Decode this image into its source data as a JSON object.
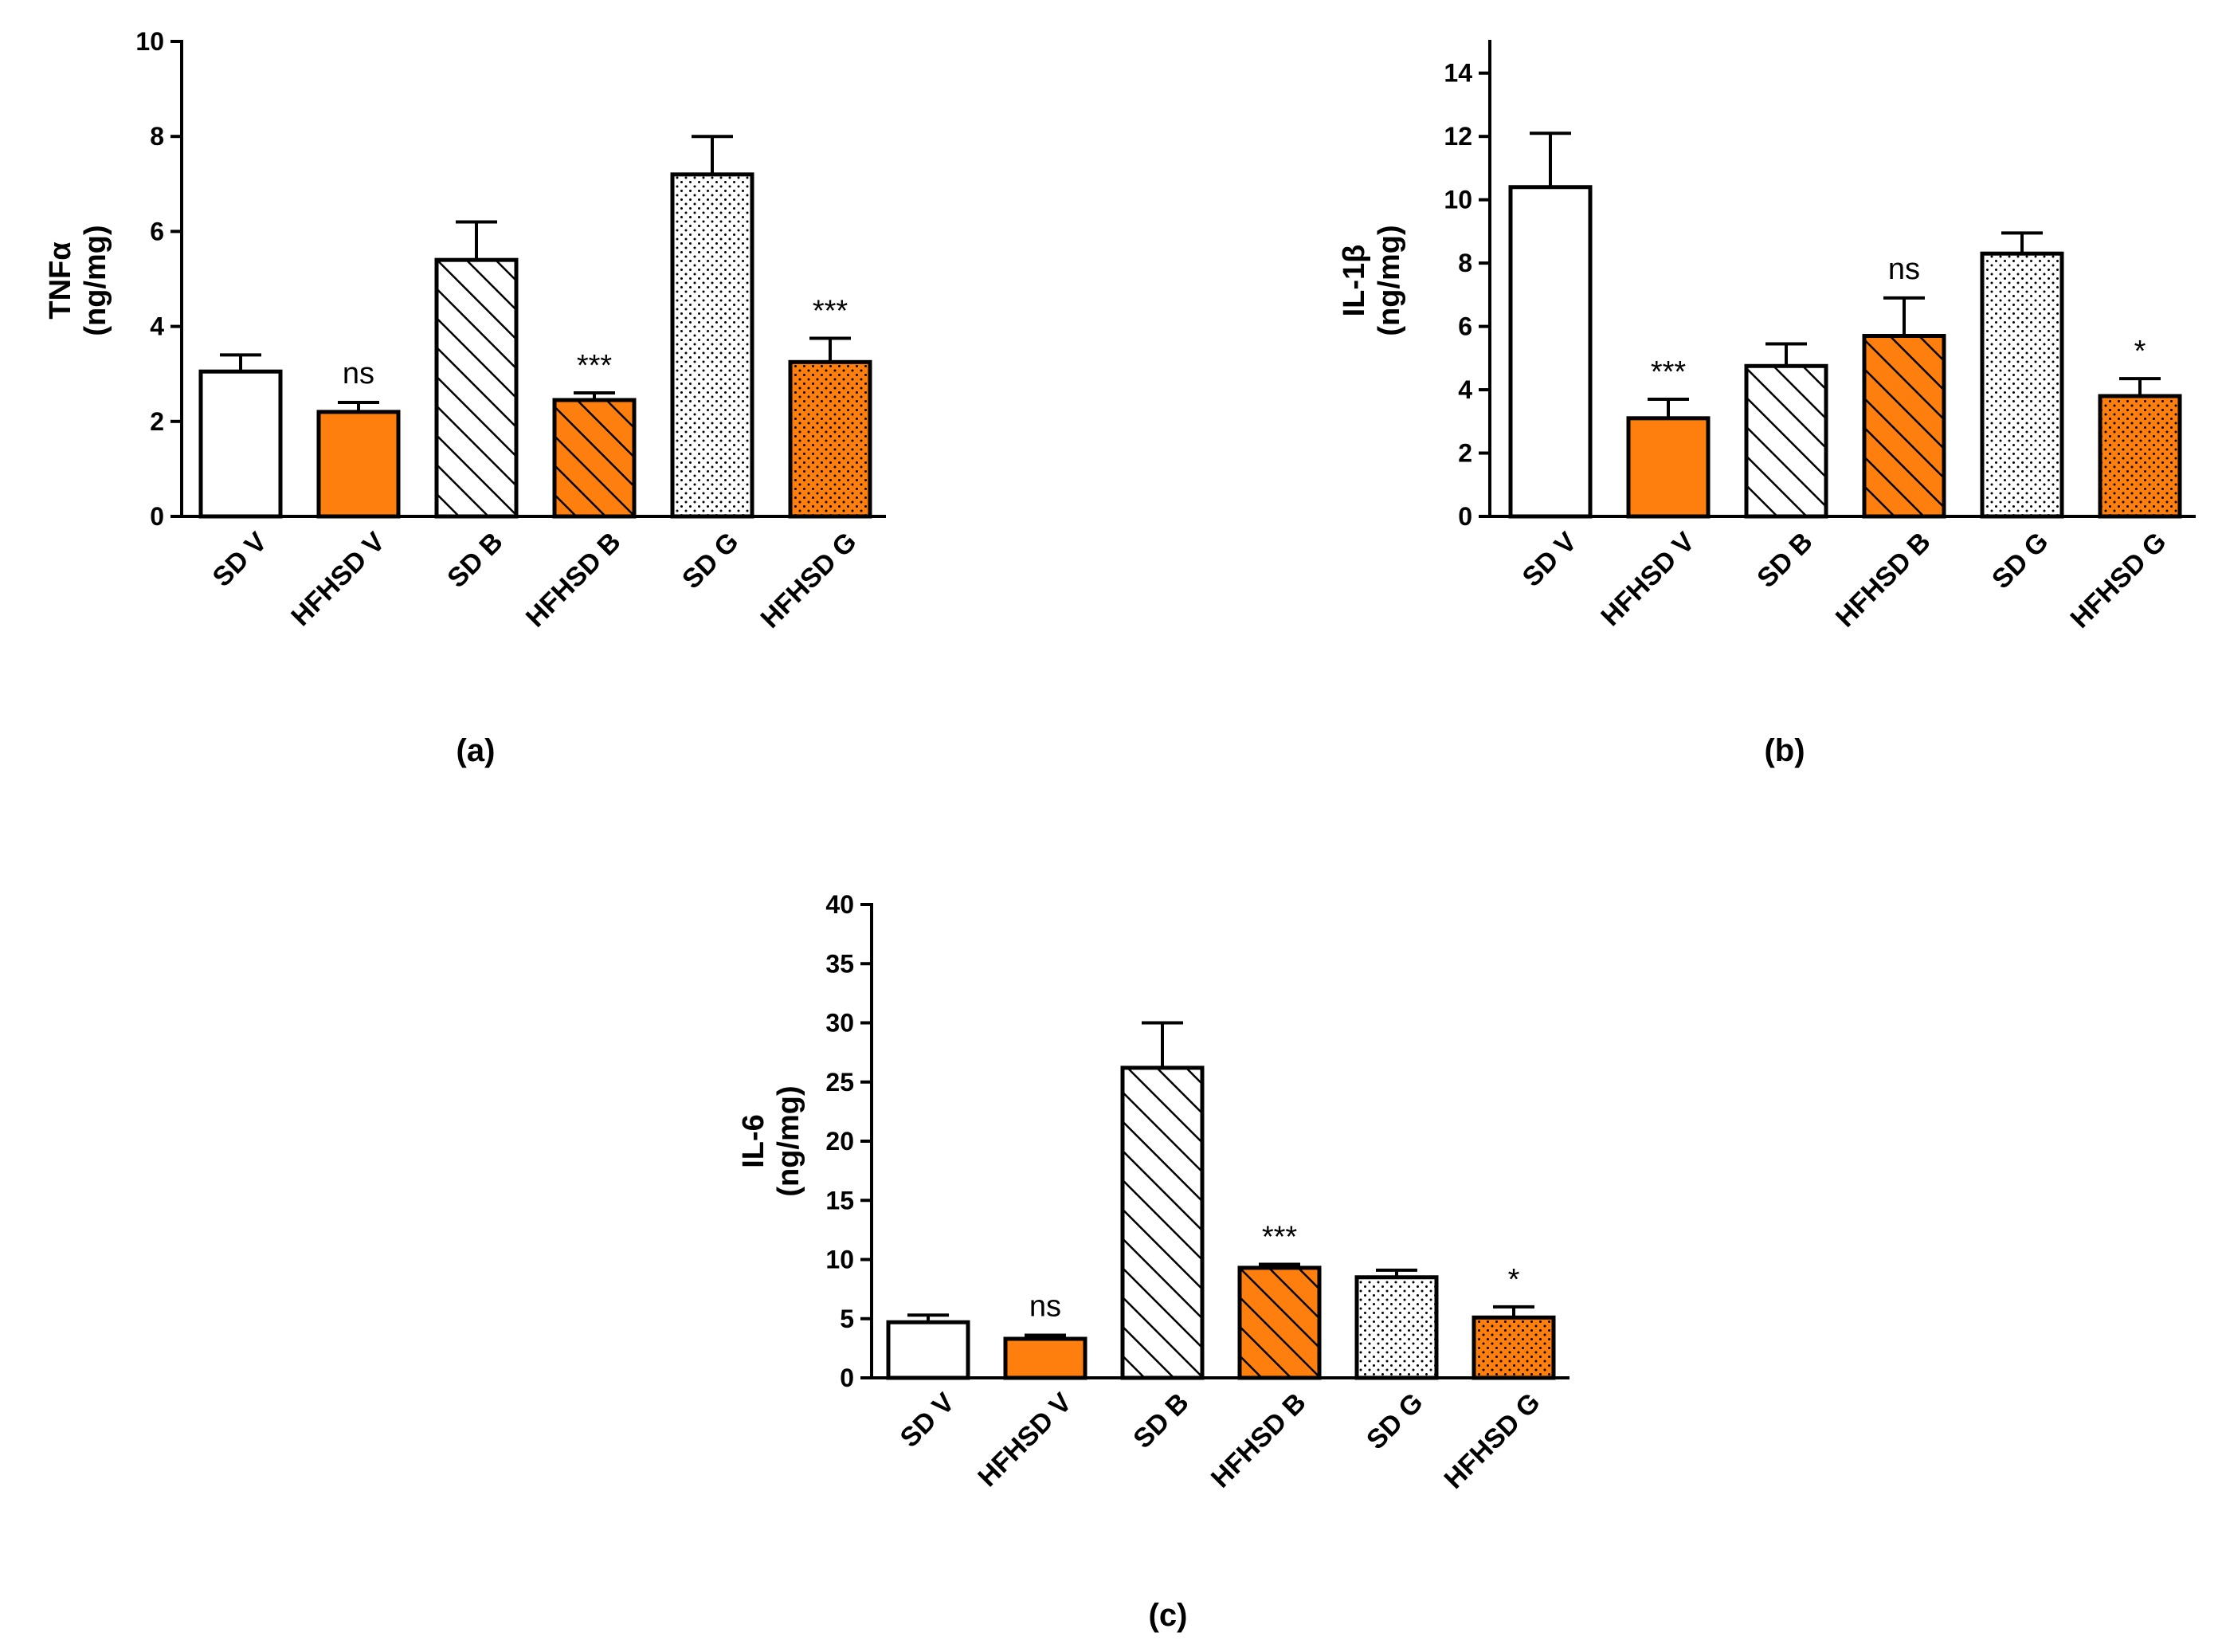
{
  "colors": {
    "orange": "#ff7f0e",
    "white": "#ffffff",
    "stroke": "#000000"
  },
  "chart_data": [
    {
      "type": "bar",
      "panel_label": "(a)",
      "ylabel_lines": [
        "TNFα",
        "(ng/mg)"
      ],
      "categories": [
        "SD V",
        "HFHSD V",
        "SD B",
        "HFHSD B",
        "SD G",
        "HFHSD G"
      ],
      "values": [
        3.05,
        2.2,
        5.4,
        2.45,
        7.2,
        3.25
      ],
      "errors": [
        0.35,
        0.2,
        0.8,
        0.15,
        0.8,
        0.5
      ],
      "fills": [
        "white",
        "orange",
        "white",
        "orange",
        "white",
        "orange"
      ],
      "patterns": [
        "none",
        "none",
        "hatch",
        "hatch",
        "dots",
        "dots"
      ],
      "annotations": [
        "",
        "ns",
        "",
        "***",
        "",
        "***"
      ],
      "ylim": [
        0,
        10
      ],
      "yticks": [
        0,
        2,
        4,
        6,
        8,
        10
      ],
      "grid": false
    },
    {
      "type": "bar",
      "panel_label": "(b)",
      "ylabel_lines": [
        "IL-1β",
        "(ng/mg)"
      ],
      "categories": [
        "SD V",
        "HFHSD V",
        "SD B",
        "HFHSD B",
        "SD G",
        "HFHSD G"
      ],
      "values": [
        10.4,
        3.1,
        4.75,
        5.7,
        8.3,
        3.8
      ],
      "errors": [
        1.7,
        0.6,
        0.7,
        1.2,
        0.65,
        0.55
      ],
      "fills": [
        "white",
        "orange",
        "white",
        "orange",
        "white",
        "orange"
      ],
      "patterns": [
        "none",
        "none",
        "hatch",
        "hatch",
        "dots",
        "dots"
      ],
      "annotations": [
        "",
        "***",
        "",
        "ns",
        "",
        "*"
      ],
      "ylim": [
        0,
        15
      ],
      "yticks": [
        0,
        2,
        4,
        6,
        8,
        10,
        12,
        14
      ],
      "grid": false
    },
    {
      "type": "bar",
      "panel_label": "(c)",
      "ylabel_lines": [
        "IL-6",
        "(ng/mg)"
      ],
      "categories": [
        "SD V",
        "HFHSD V",
        "SD B",
        "HFHSD B",
        "SD G",
        "HFHSD G"
      ],
      "values": [
        4.7,
        3.3,
        26.2,
        9.3,
        8.5,
        5.1
      ],
      "errors": [
        0.6,
        0.3,
        3.8,
        0.3,
        0.6,
        0.9
      ],
      "fills": [
        "white",
        "orange",
        "white",
        "orange",
        "white",
        "orange"
      ],
      "patterns": [
        "none",
        "none",
        "hatch",
        "hatch",
        "dots",
        "dots"
      ],
      "annotations": [
        "",
        "ns",
        "",
        "***",
        "",
        "*"
      ],
      "ylim": [
        0,
        40
      ],
      "yticks": [
        0,
        5,
        10,
        15,
        20,
        25,
        30,
        35,
        40
      ],
      "grid": false
    }
  ]
}
